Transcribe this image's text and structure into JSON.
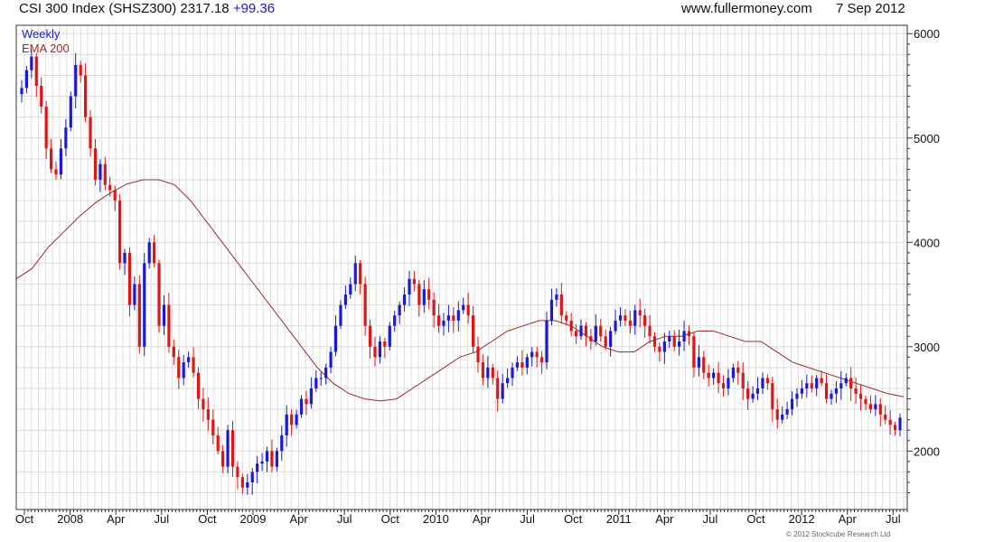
{
  "header": {
    "title": "CSI 300 Index (SHSZ300) 2317.18",
    "change": "+99.36",
    "site": "www.fullermoney.com",
    "date": "7 Sep 2012"
  },
  "legend": {
    "weekly": "Weekly",
    "ema": "EMA 200"
  },
  "copyright": "© 2012 Stockcube Research Ltd",
  "colors": {
    "up": "#1a1ad4",
    "down": "#e01515",
    "ema": "#9b2a2a",
    "grid": "#dcdcdc",
    "frame": "#333333"
  },
  "chart_data": {
    "type": "candlestick",
    "title": "CSI 300 Index (SHSZ300) 2317.18 +99.36",
    "ylim": [
      1440,
      6080
    ],
    "xlim": [
      0,
      256
    ],
    "grid": true,
    "y_axis_side": "right",
    "yticks": [
      2000,
      3000,
      4000,
      5000,
      6000
    ],
    "ytick_labels": [
      "2000",
      "3000",
      "4000",
      "5000",
      "6000"
    ],
    "xticks": [
      {
        "x": 0,
        "label": "Oct"
      },
      {
        "x": 13,
        "label": "2008"
      },
      {
        "x": 26,
        "label": "Apr"
      },
      {
        "x": 39,
        "label": "Jul"
      },
      {
        "x": 52,
        "label": "Oct"
      },
      {
        "x": 65,
        "label": "2009"
      },
      {
        "x": 78,
        "label": "Apr"
      },
      {
        "x": 91,
        "label": "Jul"
      },
      {
        "x": 104,
        "label": "Oct"
      },
      {
        "x": 117,
        "label": "2010"
      },
      {
        "x": 130,
        "label": "Apr"
      },
      {
        "x": 143,
        "label": "Jul"
      },
      {
        "x": 156,
        "label": "Oct"
      },
      {
        "x": 169,
        "label": "2011"
      },
      {
        "x": 182,
        "label": "Apr"
      },
      {
        "x": 195,
        "label": "Jul"
      },
      {
        "x": 208,
        "label": "Oct"
      },
      {
        "x": 221,
        "label": "2012"
      },
      {
        "x": 234,
        "label": "Apr"
      },
      {
        "x": 247,
        "label": "Jul"
      }
    ],
    "closes": [
      5480,
      5650,
      5780,
      5500,
      5300,
      4900,
      4700,
      4650,
      4900,
      5100,
      5400,
      5700,
      5600,
      5200,
      4900,
      4600,
      4750,
      4550,
      4500,
      4400,
      3800,
      3900,
      3400,
      3600,
      3000,
      3800,
      4000,
      3800,
      3200,
      3400,
      3000,
      2900,
      2700,
      2850,
      2900,
      2750,
      2500,
      2400,
      2300,
      2150,
      2000,
      1850,
      2200,
      1850,
      1750,
      1650,
      1700,
      1800,
      1880,
      1900,
      2000,
      1850,
      2000,
      2150,
      2350,
      2250,
      2350,
      2500,
      2450,
      2600,
      2700,
      2700,
      2800,
      2950,
      3200,
      3400,
      3500,
      3600,
      3800,
      3600,
      3200,
      3000,
      2900,
      3050,
      3000,
      3200,
      3300,
      3400,
      3500,
      3650,
      3600,
      3400,
      3550,
      3450,
      3300,
      3200,
      3250,
      3300,
      3250,
      3350,
      3400,
      3300,
      3000,
      2850,
      2700,
      2800,
      2700,
      2500,
      2650,
      2700,
      2800,
      2850,
      2800,
      2900,
      2950,
      2900,
      2850,
      3250,
      3450,
      3500,
      3300,
      3250,
      3150,
      3100,
      3200,
      3100,
      3050,
      3200,
      3100,
      3000,
      3150,
      3250,
      3300,
      3250,
      3200,
      3350,
      3300,
      3200,
      3100,
      3000,
      2950,
      3050,
      3100,
      3000,
      3050,
      3150,
      3100,
      2800,
      2900,
      2750,
      2700,
      2750,
      2650,
      2600,
      2700,
      2800,
      2750,
      2600,
      2500,
      2550,
      2600,
      2700,
      2650,
      2400,
      2300,
      2350,
      2400,
      2500,
      2550,
      2600,
      2650,
      2600,
      2700,
      2650,
      2500,
      2550,
      2600,
      2650,
      2700,
      2600,
      2550,
      2500,
      2450,
      2400,
      2450,
      2350,
      2300,
      2250,
      2200,
      2320
    ],
    "ema": [
      3650,
      3750,
      3950,
      4100,
      4250,
      4380,
      4480,
      4560,
      4600,
      4600,
      4550,
      4400,
      4200,
      4000,
      3800,
      3600,
      3400,
      3200,
      3000,
      2800,
      2650,
      2550,
      2500,
      2480,
      2500,
      2600,
      2700,
      2800,
      2900,
      2950,
      3050,
      3150,
      3200,
      3250,
      3250,
      3200,
      3100,
      3000,
      2950,
      2950,
      3050,
      3100,
      3100,
      3150,
      3150,
      3100,
      3050,
      3050,
      2950,
      2850,
      2800,
      2750,
      2700,
      2650,
      2600,
      2550,
      2520
    ]
  }
}
